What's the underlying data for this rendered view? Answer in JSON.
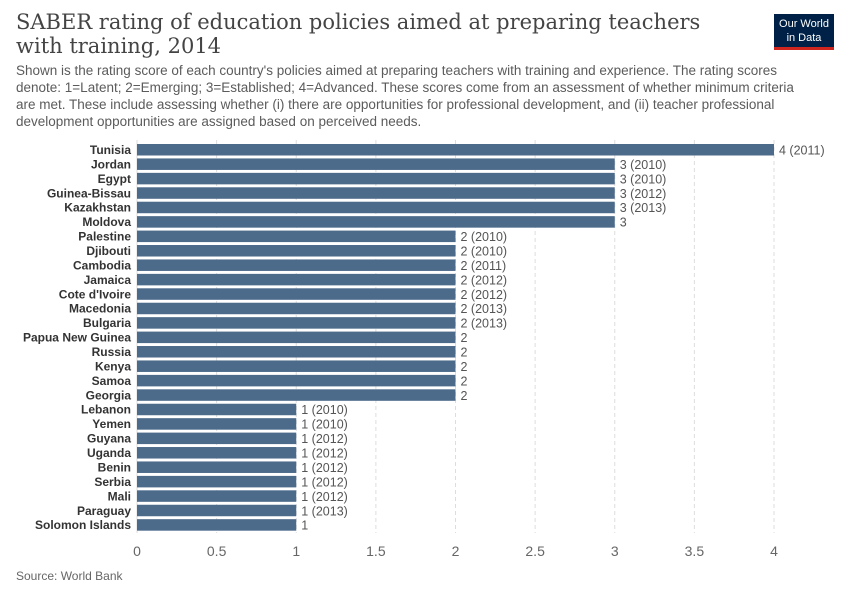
{
  "header": {
    "title": "SABER rating of education policies aimed at preparing teachers with training, 2014",
    "subtitle": "Shown is the rating score of each country's policies aimed at preparing teachers with training and experience. The rating scores denote: 1=Latent; 2=Emerging; 3=Established; 4=Advanced. These scores come from an assessment of whether minimum criteria are met. These include assessing whether (i) there are opportunities for professional development, and (ii) teacher professional development opportunities are assigned based on perceived needs.",
    "logo_line1": "Our World",
    "logo_line2": "in Data"
  },
  "footer": {
    "source": "Source: World Bank"
  },
  "colors": {
    "bar": "#4c6a8a",
    "grid": "#dddddd",
    "brand": "#002147",
    "brand_accent": "#ce261e"
  },
  "chart_data": {
    "type": "bar",
    "orientation": "horizontal",
    "title": "SABER rating of education policies aimed at preparing teachers with training, 2014",
    "xlim": [
      0,
      4
    ],
    "xticks": [
      "0",
      "0.5",
      "1",
      "1.5",
      "2",
      "2.5",
      "3",
      "3.5",
      "4"
    ],
    "grid": "vertical dashed",
    "categories": [
      "Tunisia",
      "Jordan",
      "Egypt",
      "Guinea-Bissau",
      "Kazakhstan",
      "Moldova",
      "Palestine",
      "Djibouti",
      "Cambodia",
      "Jamaica",
      "Cote d'Ivoire",
      "Macedonia",
      "Bulgaria",
      "Papua New Guinea",
      "Russia",
      "Kenya",
      "Samoa",
      "Georgia",
      "Lebanon",
      "Yemen",
      "Guyana",
      "Uganda",
      "Benin",
      "Serbia",
      "Mali",
      "Paraguay",
      "Solomon Islands"
    ],
    "values": [
      4,
      3,
      3,
      3,
      3,
      3,
      2,
      2,
      2,
      2,
      2,
      2,
      2,
      2,
      2,
      2,
      2,
      2,
      1,
      1,
      1,
      1,
      1,
      1,
      1,
      1,
      1
    ],
    "value_labels": [
      "4 (2011)",
      "3 (2010)",
      "3 (2010)",
      "3 (2012)",
      "3 (2013)",
      "3",
      "2 (2010)",
      "2 (2010)",
      "2 (2011)",
      "2 (2012)",
      "2 (2012)",
      "2 (2013)",
      "2 (2013)",
      "2",
      "2",
      "2",
      "2",
      "2",
      "1 (2010)",
      "1 (2010)",
      "1 (2012)",
      "1 (2012)",
      "1 (2012)",
      "1 (2012)",
      "1 (2012)",
      "1 (2013)",
      "1"
    ]
  }
}
